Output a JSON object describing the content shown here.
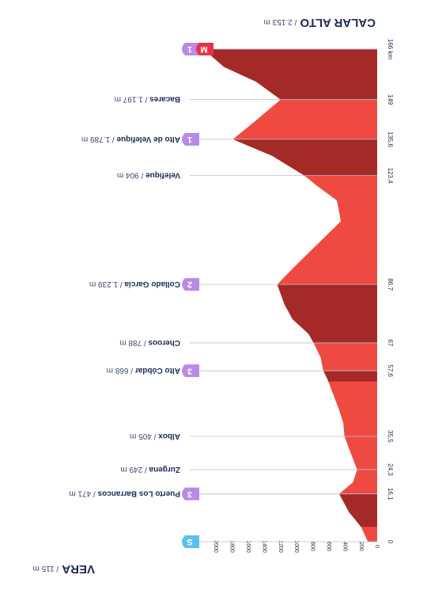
{
  "chart_data": {
    "type": "profile",
    "start": {
      "name": "VERA",
      "alt_label": "/ 115 m"
    },
    "finish": {
      "name": "CALAR ALTO",
      "alt_label": "/ 2.153 m"
    },
    "xlim": [
      0,
      166
    ],
    "ylim": [
      0,
      2000
    ],
    "yticks": [
      0,
      200,
      400,
      600,
      800,
      1000,
      1200,
      1400,
      1600,
      1800,
      2000
    ],
    "color": "#ef4a42",
    "dark_color": "#a32a27",
    "profile": {
      "x": [
        0,
        5,
        10,
        16.1,
        20,
        24.3,
        30,
        35.5,
        40,
        45,
        50,
        55,
        57.6,
        62,
        67,
        70,
        75,
        80,
        86.7,
        92,
        100,
        108,
        115,
        120,
        123.4,
        130,
        135.6,
        142,
        149,
        155,
        160,
        166
      ],
      "values": [
        115,
        200,
        350,
        471,
        300,
        249,
        330,
        405,
        420,
        480,
        550,
        620,
        668,
        700,
        788,
        850,
        1050,
        1150,
        1239,
        1050,
        750,
        450,
        500,
        750,
        904,
        1300,
        1789,
        1500,
        1197,
        1500,
        1900,
        2153
      ]
    },
    "dark_ranges": [
      [
        5,
        16.1
      ],
      [
        54,
        57.6
      ],
      [
        67,
        86.7
      ],
      [
        123.4,
        135.6
      ],
      [
        149,
        166
      ]
    ],
    "waypoints": [
      {
        "km": 0,
        "name": null,
        "alt_label": null,
        "badges": [
          {
            "text": "S",
            "color": "#5bc0eb"
          }
        ]
      },
      {
        "km": {
          "value": 16.1,
          "label": "16,1"
        },
        "name": "Puerto Los Barrancos",
        "alt_label": "/ 471 m",
        "badges": [
          {
            "text": "3",
            "color": "#b98ae6"
          }
        ]
      },
      {
        "km": {
          "value": 24.3,
          "label": "24,3"
        },
        "name": "Zurgena",
        "alt_label": "/ 249 m",
        "badges": []
      },
      {
        "km": {
          "value": 35.5,
          "label": "35,5"
        },
        "name": "Albox",
        "alt_label": "/ 405 m",
        "badges": []
      },
      {
        "km": {
          "value": 57.6,
          "label": "57,6"
        },
        "name": "Alto Cóbdar",
        "alt_label": "/ 668 m",
        "badges": [
          {
            "text": "3",
            "color": "#b98ae6"
          }
        ]
      },
      {
        "km": 67,
        "name": "Cheroos",
        "alt_label": "/ 788 m",
        "badges": []
      },
      {
        "km": {
          "value": 86.7,
          "label": "86,7"
        },
        "name": "Collado García",
        "alt_label": "/ 1.239 m",
        "badges": [
          {
            "text": "2",
            "color": "#b98ae6"
          }
        ]
      },
      {
        "km": {
          "value": 123.4,
          "label": "123,4"
        },
        "name": "Velefique",
        "alt_label": "/ 904 m",
        "badges": []
      },
      {
        "km": {
          "value": 135.6,
          "label": "135,6"
        },
        "name": "Alto de Velefique",
        "alt_label": "/ 1.789 m",
        "badges": [
          {
            "text": "1",
            "color": "#b98ae6"
          }
        ]
      },
      {
        "km": 149,
        "name": "Bacares",
        "alt_label": "/ 1.197 m",
        "badges": []
      },
      {
        "km": {
          "value": 166,
          "label": "166 km"
        },
        "name": null,
        "alt_label": null,
        "badges": [
          {
            "text": "1",
            "color": "#b98ae6"
          },
          {
            "text": "M",
            "color": "#e6334a"
          }
        ]
      }
    ]
  }
}
